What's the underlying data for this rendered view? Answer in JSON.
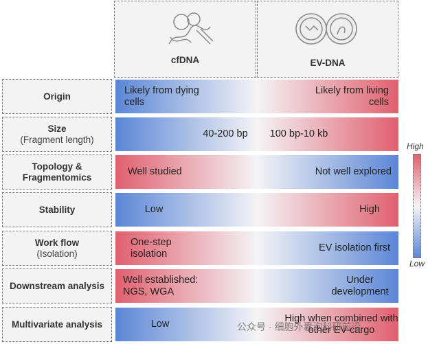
{
  "columns": [
    "cfDNA",
    "EV-DNA"
  ],
  "rows": [
    {
      "label": "Origin",
      "left": "Likely from dying cells",
      "right": "Likely from living cells",
      "colors": [
        "#5b86d6",
        "#e0606e"
      ]
    },
    {
      "label": "Size",
      "sublabel": "(Fragment length)",
      "left": "40-200 bp",
      "right": "100 bp-10 kb",
      "colors": [
        "#5b86d6",
        "#e0606e"
      ]
    },
    {
      "label": "Topology & Fragmentomics",
      "left": "Well studied",
      "right": "Not well explored",
      "colors": [
        "#e0606e",
        "#5b86d6"
      ]
    },
    {
      "label": "Stability",
      "left": "Low",
      "right": "High",
      "colors": [
        "#5b86d6",
        "#e0606e"
      ]
    },
    {
      "label": "Work flow",
      "sublabel": "(Isolation)",
      "left": "One-step isolation",
      "right": "EV isolation first",
      "colors": [
        "#e0606e",
        "#5b86d6"
      ]
    },
    {
      "label": "Downstream analysis",
      "left": "Well established: NGS, WGA",
      "right": "Under development",
      "colors": [
        "#e0606e",
        "#5b86d6"
      ]
    },
    {
      "label": "Multivariate analysis",
      "left": "Low",
      "right": "High when combined with other EV-cargo",
      "colors": [
        "#5b86d6",
        "#e0606e"
      ]
    }
  ],
  "legend": {
    "high": "High",
    "low": "Low",
    "colors": [
      "#e0606e",
      "#5b86d6"
    ]
  },
  "watermark": "公众号 · 细胞外囊泡科研前沿"
}
